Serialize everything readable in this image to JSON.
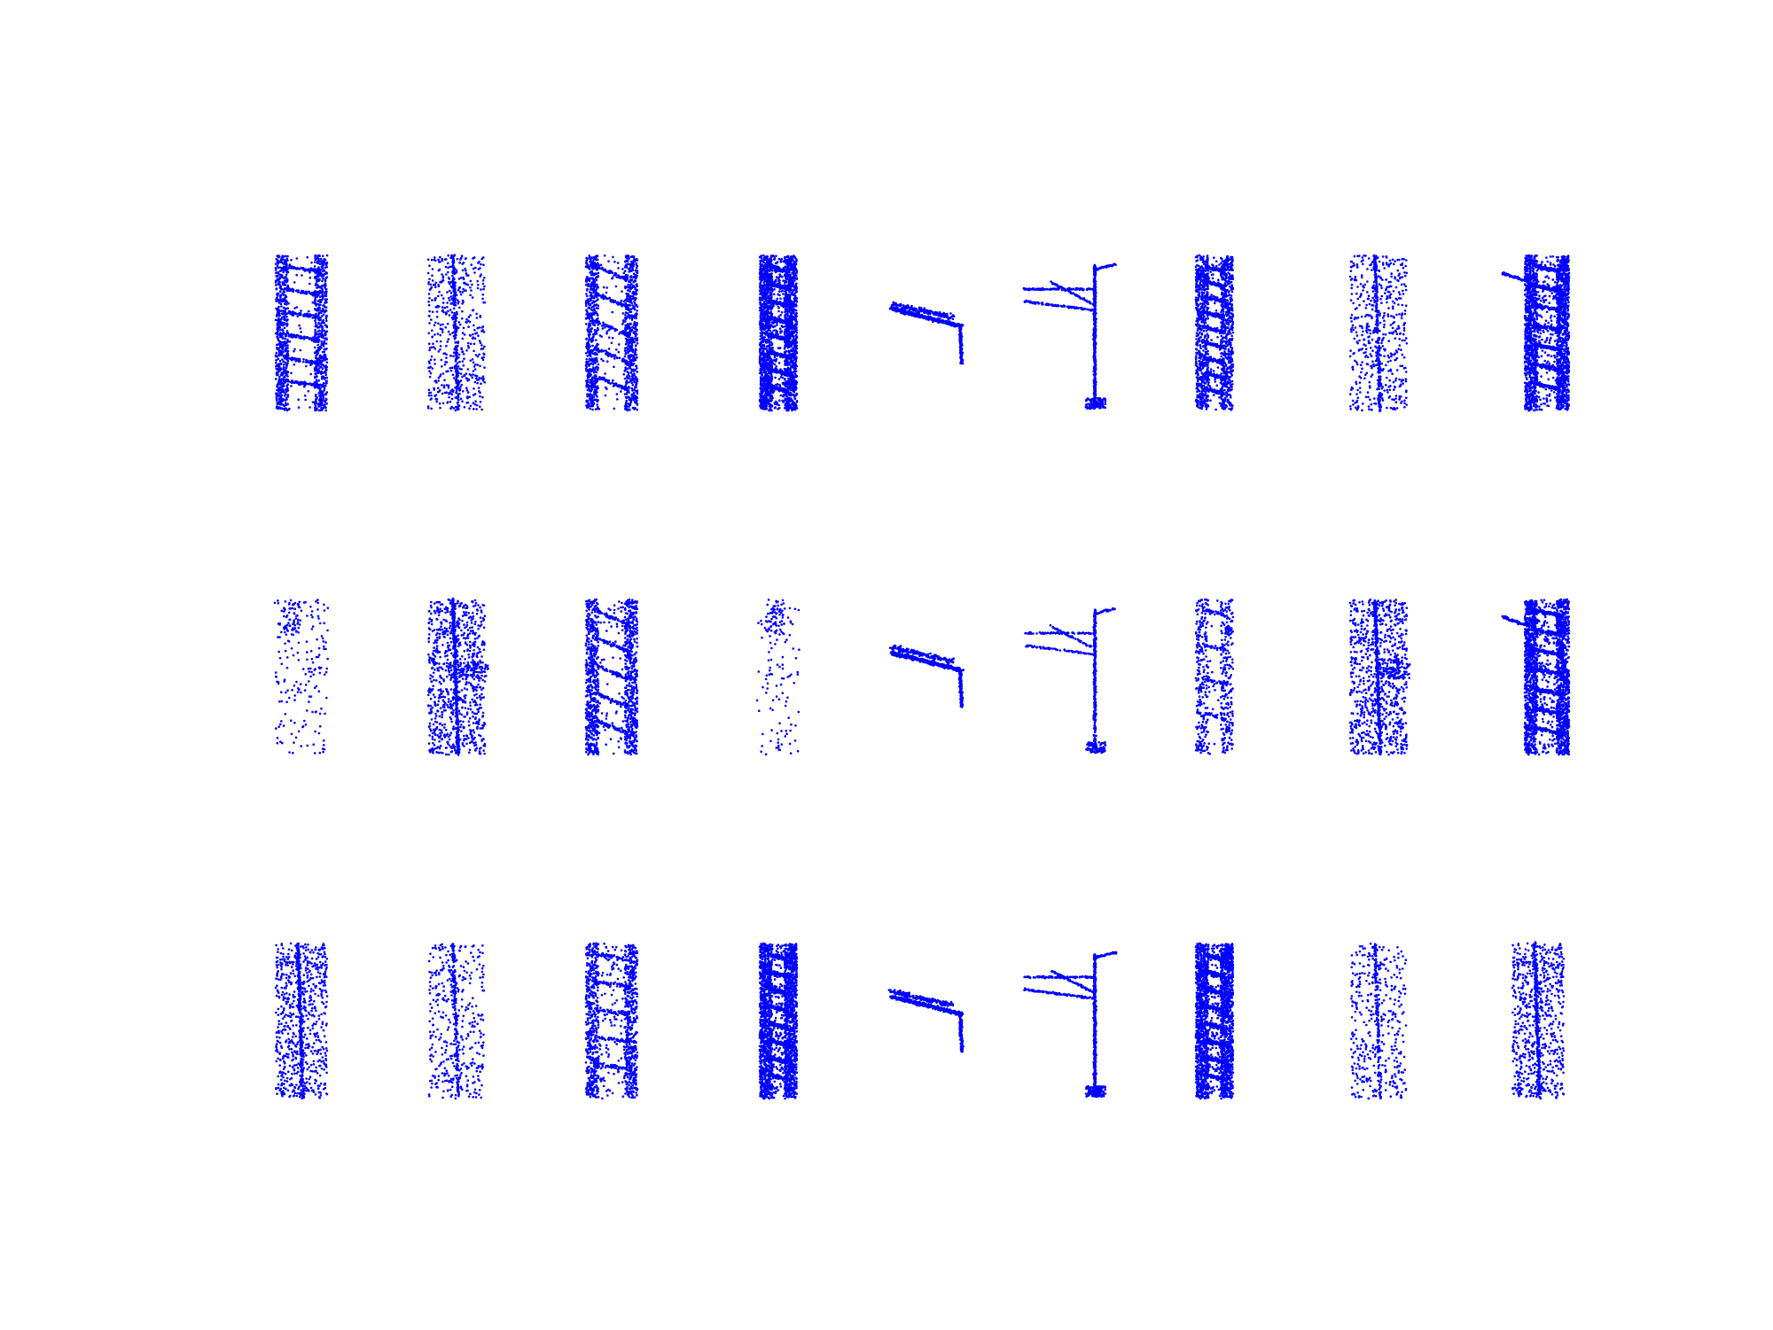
{
  "figure": {
    "point_color": "#0000ff",
    "background": "#ffffff",
    "rows": 3,
    "columns": 9,
    "panels": [
      [
        "tower-ladder",
        "tower-noisy-center",
        "tower-zigzag",
        "tower-dense",
        "bracket-arm",
        "catenary-pole",
        "tower-ladder-regular",
        "tower-noisy-center",
        "tower-with-side-arm"
      ],
      [
        "tower-sparse",
        "tower-noisy-center-dense",
        "tower-zigzag",
        "tower-very-sparse",
        "bracket-arm",
        "catenary-pole-sparse",
        "tower-ladder-sparse",
        "tower-noisy-center-dense",
        "tower-with-side-arm"
      ],
      [
        "tower-center-noisy",
        "tower-center-sparse",
        "tower-center-ladder",
        "tower-dense",
        "bracket-arm",
        "catenary-pole",
        "tower-dense",
        "tower-center-sparse",
        "tower-center-noisy"
      ]
    ]
  }
}
